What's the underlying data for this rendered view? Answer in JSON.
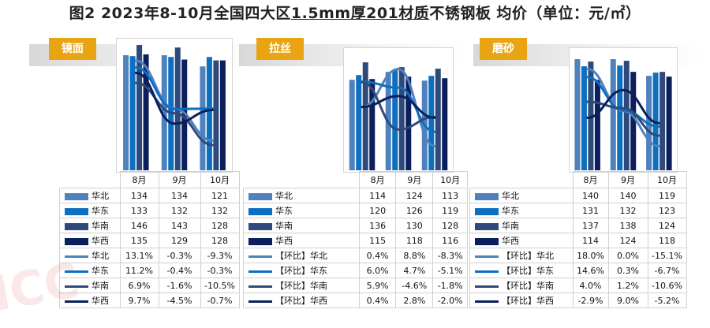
{
  "title": {
    "prefix": "图2  2023年8-10月全国四大区",
    "underlined": "1.5mm厚201材质",
    "suffix": "不锈钢板  均价（单位：元/㎡）"
  },
  "colors": {
    "north": "#4f81bd",
    "east": "#0d6fc0",
    "south": "#2f4a7a",
    "west": "#0b1f5c",
    "tab": "#e8a413"
  },
  "chart_data": [
    {
      "type": "bar",
      "tab": "镜面",
      "categories": [
        "8月",
        "9月",
        "10月"
      ],
      "bar_max": 146,
      "series": [
        {
          "name": "华北",
          "values": [
            134,
            134,
            121
          ]
        },
        {
          "name": "华东",
          "values": [
            133,
            132,
            132
          ]
        },
        {
          "name": "华南",
          "values": [
            146,
            143,
            128
          ]
        },
        {
          "name": "华西",
          "values": [
            135,
            129,
            128
          ]
        }
      ],
      "mom": [
        {
          "name": "华北",
          "values": [
            "13.1%",
            "-0.3%",
            "-9.3%"
          ],
          "nums": [
            13.1,
            -0.3,
            -9.3
          ]
        },
        {
          "name": "华东",
          "values": [
            "11.2%",
            "-0.4%",
            "-0.3%"
          ],
          "nums": [
            11.2,
            -0.4,
            -0.3
          ]
        },
        {
          "name": "华南",
          "values": [
            "6.9%",
            "-1.6%",
            "-10.5%"
          ],
          "nums": [
            6.9,
            -1.6,
            -10.5
          ]
        },
        {
          "name": "华西",
          "values": [
            "9.7%",
            "-4.5%",
            "-0.7%"
          ],
          "nums": [
            9.7,
            -4.5,
            -0.7
          ]
        }
      ]
    },
    {
      "type": "bar",
      "tab": "拉丝",
      "categories": [
        "8月",
        "9月",
        "10月"
      ],
      "bar_max": 146,
      "series": [
        {
          "name": "华北",
          "values": [
            114,
            124,
            113
          ]
        },
        {
          "name": "华东",
          "values": [
            120,
            126,
            119
          ]
        },
        {
          "name": "华南",
          "values": [
            136,
            130,
            128
          ]
        },
        {
          "name": "华西",
          "values": [
            115,
            118,
            116
          ]
        }
      ],
      "mom": [
        {
          "name": "【环比】华北",
          "values": [
            "0.4%",
            "8.8%",
            "-8.3%"
          ],
          "nums": [
            0.4,
            8.8,
            -8.3
          ]
        },
        {
          "name": "【环比】华东",
          "values": [
            "6.0%",
            "4.7%",
            "-5.1%"
          ],
          "nums": [
            6.0,
            4.7,
            -5.1
          ]
        },
        {
          "name": "【环比】华南",
          "values": [
            "5.9%",
            "-4.6%",
            "-1.8%"
          ],
          "nums": [
            5.9,
            -4.6,
            -1.8
          ]
        },
        {
          "name": "【环比】华西",
          "values": [
            "0.4%",
            "2.8%",
            "-2.0%"
          ],
          "nums": [
            0.4,
            2.8,
            -2.0
          ]
        }
      ]
    },
    {
      "type": "bar",
      "tab": "磨砂",
      "categories": [
        "8月",
        "9月",
        "10月"
      ],
      "bar_max": 146,
      "series": [
        {
          "name": "华北",
          "values": [
            140,
            140,
            119
          ]
        },
        {
          "name": "华东",
          "values": [
            131,
            132,
            123
          ]
        },
        {
          "name": "华南",
          "values": [
            137,
            138,
            124
          ]
        },
        {
          "name": "华西",
          "values": [
            114,
            124,
            118
          ]
        }
      ],
      "mom": [
        {
          "name": "【环比】华北",
          "values": [
            "18.0%",
            "0.0%",
            "-15.1%"
          ],
          "nums": [
            18.0,
            0.0,
            -15.1
          ]
        },
        {
          "name": "【环比】华东",
          "values": [
            "14.6%",
            "0.3%",
            "-6.7%"
          ],
          "nums": [
            14.6,
            0.3,
            -6.7
          ]
        },
        {
          "name": "【环比】华南",
          "values": [
            "4.0%",
            "1.2%",
            "-10.6%"
          ],
          "nums": [
            4.0,
            1.2,
            -10.6
          ]
        },
        {
          "name": "【环比】华西",
          "values": [
            "-2.9%",
            "9.0%",
            "-5.2%"
          ],
          "nums": [
            -2.9,
            9.0,
            -5.2
          ]
        }
      ]
    }
  ]
}
